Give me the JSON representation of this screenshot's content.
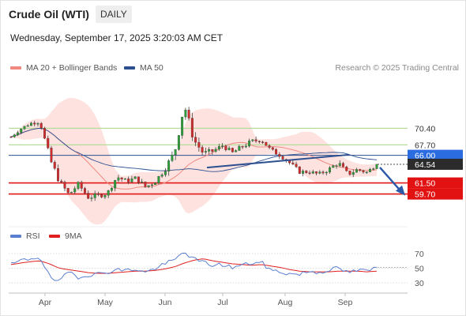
{
  "header": {
    "instrument": "Crude Oil (WTI)",
    "timeframe": "DAILY",
    "datetime": "Wednesday, September 17, 2025 3:20:03 AM CET"
  },
  "legend": {
    "bollinger": {
      "label": "MA 20 + Bollinger Bands",
      "color": "#f08a80"
    },
    "ma50": {
      "label": "MA 50",
      "color": "#2c4f8f"
    },
    "credit": "Research © 2025 Trading Central"
  },
  "rsi_legend": {
    "rsi": {
      "label": "RSI",
      "color": "#5b7fd0"
    },
    "ma9": {
      "label": "9MA",
      "color": "#e02020"
    }
  },
  "chart_data": [
    {
      "type": "candlestick",
      "title": "",
      "x_months": [
        "Apr",
        "May",
        "Jun",
        "Jul",
        "Aug",
        "Sep"
      ],
      "y_range": [
        53.5,
        75.5
      ],
      "levels": [
        {
          "label": "70.40",
          "value": 70.4,
          "style": "green"
        },
        {
          "label": "67.70",
          "value": 67.7,
          "style": "green"
        },
        {
          "label": "66.00",
          "value": 66.0,
          "style": "blue"
        },
        {
          "label": "64.54",
          "value": 64.54,
          "style": "current"
        },
        {
          "label": "61.50",
          "value": 61.5,
          "style": "red"
        },
        {
          "label": "59.70",
          "value": 59.7,
          "style": "red"
        }
      ],
      "anchors": [
        [
          69.0,
          0.5
        ],
        [
          70.3,
          0.6
        ],
        [
          71.2,
          0.6
        ],
        [
          71.5,
          0.7
        ],
        [
          65.5,
          1.8
        ],
        [
          61.8,
          1.0
        ],
        [
          59.6,
          1.1
        ],
        [
          61.3,
          0.9
        ],
        [
          59.2,
          1.0
        ],
        [
          59.4,
          0.9
        ],
        [
          59.8,
          0.8
        ],
        [
          62.5,
          0.9
        ],
        [
          61.8,
          0.8
        ],
        [
          62.3,
          0.9
        ],
        [
          60.8,
          1.0
        ],
        [
          61.8,
          0.9
        ],
        [
          63.8,
          1.1
        ],
        [
          66.5,
          1.6
        ],
        [
          74.2,
          1.5
        ],
        [
          68.5,
          1.6
        ],
        [
          66.3,
          1.1
        ],
        [
          66.7,
          0.9
        ],
        [
          67.6,
          0.9
        ],
        [
          66.4,
          0.8
        ],
        [
          67.4,
          0.9
        ],
        [
          68.2,
          1.0
        ],
        [
          68.6,
          0.9
        ],
        [
          66.8,
          0.9
        ],
        [
          66.0,
          0.8
        ],
        [
          64.7,
          0.8
        ],
        [
          63.3,
          0.8
        ],
        [
          63.3,
          0.7
        ],
        [
          62.9,
          0.8
        ],
        [
          63.7,
          0.8
        ],
        [
          64.8,
          0.9
        ],
        [
          62.9,
          0.9
        ],
        [
          63.7,
          0.8
        ],
        [
          63.2,
          0.8
        ],
        [
          64.6,
          0.6
        ]
      ],
      "trendlines": [
        {
          "from": [
            "Jun 20",
            64.0
          ],
          "to": [
            "Sep 3",
            66.1
          ]
        }
      ],
      "forecast_arrow": {
        "from": 64.54,
        "to": 59.7
      }
    },
    {
      "type": "line",
      "title": "",
      "y_ticks": [
        70,
        50,
        30
      ],
      "series": [
        {
          "name": "RSI",
          "anchors": [
            55,
            60,
            63,
            66,
            38,
            30,
            46,
            38,
            41,
            42,
            45,
            48,
            47,
            49,
            44,
            50,
            56,
            61,
            73,
            62,
            58,
            54,
            55,
            51,
            54,
            57,
            58,
            47,
            45,
            42,
            42,
            46,
            44,
            48,
            50,
            44,
            47,
            46,
            51
          ]
        },
        {
          "name": "9MA",
          "anchors": [
            55,
            57,
            59,
            60,
            56,
            50,
            48,
            46,
            44,
            43,
            43,
            44,
            45,
            46,
            46,
            47,
            49,
            52,
            57,
            61,
            63,
            60,
            58,
            56,
            55,
            54,
            55,
            53,
            51,
            48,
            46,
            45,
            45,
            45,
            46,
            46,
            46,
            45,
            46
          ]
        }
      ]
    }
  ]
}
